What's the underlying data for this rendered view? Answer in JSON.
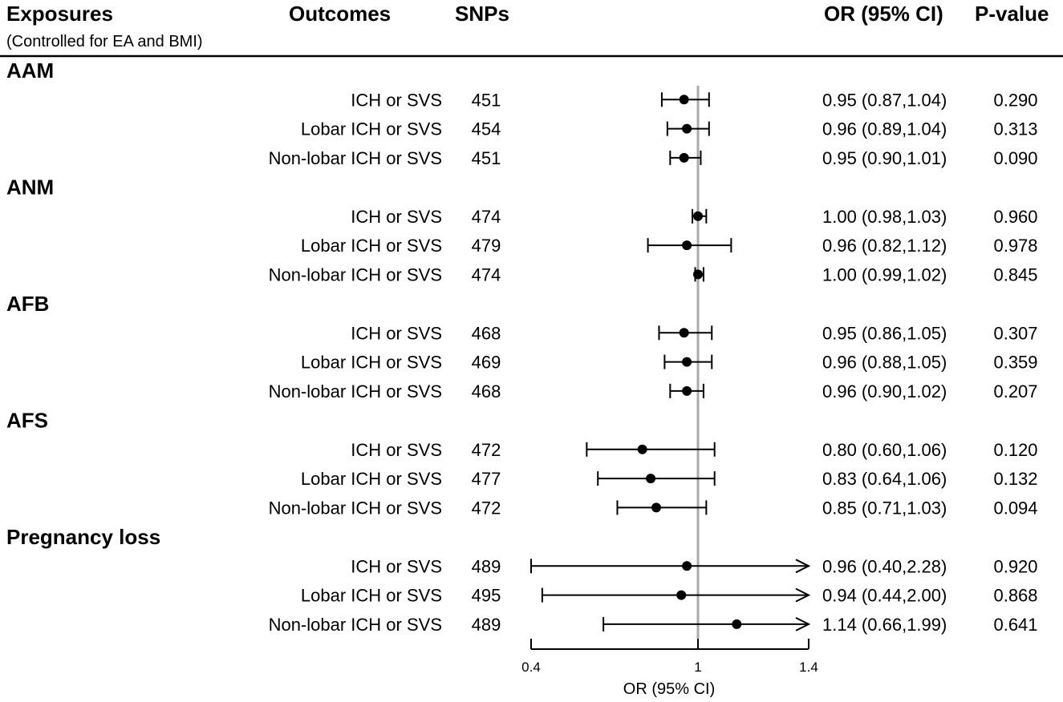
{
  "header": {
    "exposures": "Exposures",
    "exposures_sub": "(Controlled for EA and BMI)",
    "outcomes": "Outcomes",
    "snps": "SNPs",
    "or_ci": "OR (95% CI)",
    "pvalue": "P-value"
  },
  "colors": {
    "reference_line": "#aaaaaa",
    "mark": "#000000"
  },
  "chart_data": {
    "type": "forest",
    "xlabel": "OR (95% CI)",
    "xlim": [
      0.4,
      1.4
    ],
    "xticks": [
      "0.4",
      "1",
      "1.4"
    ],
    "reference_value": 1,
    "groups": [
      {
        "name": "AAM",
        "rows": [
          {
            "outcome": "ICH or SVS",
            "snps": "451",
            "or": 0.95,
            "lo": 0.87,
            "hi": 1.04,
            "or_text": "0.95 (0.87,1.04)",
            "p": "0.290"
          },
          {
            "outcome": "Lobar ICH or SVS",
            "snps": "454",
            "or": 0.96,
            "lo": 0.89,
            "hi": 1.04,
            "or_text": "0.96 (0.89,1.04)",
            "p": "0.313"
          },
          {
            "outcome": "Non-lobar ICH or SVS",
            "snps": "451",
            "or": 0.95,
            "lo": 0.9,
            "hi": 1.01,
            "or_text": "0.95 (0.90,1.01)",
            "p": "0.090"
          }
        ]
      },
      {
        "name": "ANM",
        "rows": [
          {
            "outcome": "ICH or SVS",
            "snps": "474",
            "or": 1.0,
            "lo": 0.98,
            "hi": 1.03,
            "or_text": "1.00 (0.98,1.03)",
            "p": "0.960"
          },
          {
            "outcome": "Lobar ICH or SVS",
            "snps": "479",
            "or": 0.96,
            "lo": 0.82,
            "hi": 1.12,
            "or_text": "0.96 (0.82,1.12)",
            "p": "0.978"
          },
          {
            "outcome": "Non-lobar ICH or SVS",
            "snps": "474",
            "or": 1.0,
            "lo": 0.99,
            "hi": 1.02,
            "or_text": "1.00 (0.99,1.02)",
            "p": "0.845"
          }
        ]
      },
      {
        "name": "AFB",
        "rows": [
          {
            "outcome": "ICH or SVS",
            "snps": "468",
            "or": 0.95,
            "lo": 0.86,
            "hi": 1.05,
            "or_text": "0.95 (0.86,1.05)",
            "p": "0.307"
          },
          {
            "outcome": "Lobar ICH or SVS",
            "snps": "469",
            "or": 0.96,
            "lo": 0.88,
            "hi": 1.05,
            "or_text": "0.96 (0.88,1.05)",
            "p": "0.359"
          },
          {
            "outcome": "Non-lobar ICH or SVS",
            "snps": "468",
            "or": 0.96,
            "lo": 0.9,
            "hi": 1.02,
            "or_text": "0.96 (0.90,1.02)",
            "p": "0.207"
          }
        ]
      },
      {
        "name": "AFS",
        "rows": [
          {
            "outcome": "ICH or SVS",
            "snps": "472",
            "or": 0.8,
            "lo": 0.6,
            "hi": 1.06,
            "or_text": "0.80 (0.60,1.06)",
            "p": "0.120"
          },
          {
            "outcome": "Lobar ICH or SVS",
            "snps": "477",
            "or": 0.83,
            "lo": 0.64,
            "hi": 1.06,
            "or_text": "0.83 (0.64,1.06)",
            "p": "0.132"
          },
          {
            "outcome": "Non-lobar ICH or SVS",
            "snps": "472",
            "or": 0.85,
            "lo": 0.71,
            "hi": 1.03,
            "or_text": "0.85 (0.71,1.03)",
            "p": "0.094"
          }
        ]
      },
      {
        "name": "Pregnancy loss",
        "rows": [
          {
            "outcome": "ICH or SVS",
            "snps": "489",
            "or": 0.96,
            "lo": 0.4,
            "hi": 2.28,
            "or_text": "0.96 (0.40,2.28)",
            "p": "0.920"
          },
          {
            "outcome": "Lobar ICH or SVS",
            "snps": "495",
            "or": 0.94,
            "lo": 0.44,
            "hi": 2.0,
            "or_text": "0.94 (0.44,2.00)",
            "p": "0.868"
          },
          {
            "outcome": "Non-lobar ICH or SVS",
            "snps": "489",
            "or": 1.14,
            "lo": 0.66,
            "hi": 1.99,
            "or_text": "1.14 (0.66,1.99)",
            "p": "0.641"
          }
        ]
      }
    ]
  }
}
